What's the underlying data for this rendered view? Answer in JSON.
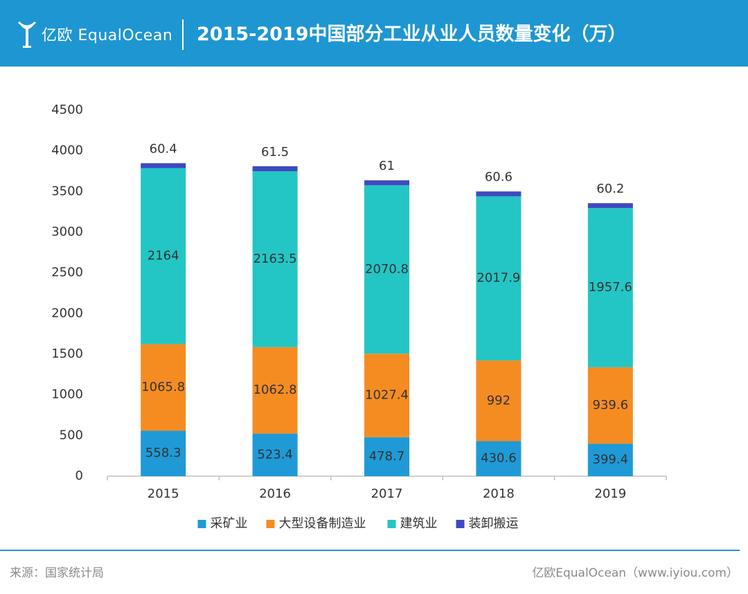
{
  "header": {
    "logo_text": "亿欧 EqualOcean",
    "title": "2015-2019中国部分工业从业人员数量变化（万）"
  },
  "colors": {
    "header_bg": "#1e96d2",
    "series": [
      "#1f9ad6",
      "#f58c22",
      "#23c6c4",
      "#3e4ac0"
    ]
  },
  "chart_data": {
    "type": "bar",
    "stacked": true,
    "categories": [
      "2015",
      "2016",
      "2017",
      "2018",
      "2019"
    ],
    "series": [
      {
        "name": "采矿业",
        "values": [
          558.3,
          523.4,
          478.7,
          430.6,
          399.4
        ]
      },
      {
        "name": "大型设备制造业",
        "values": [
          1065.8,
          1062.8,
          1027.4,
          992,
          939.6
        ]
      },
      {
        "name": "建筑业",
        "values": [
          2164,
          2163.5,
          2070.8,
          2017.9,
          1957.6
        ]
      },
      {
        "name": "装卸搬运",
        "values": [
          60.4,
          61.5,
          61,
          60.6,
          60.2
        ]
      }
    ],
    "ylim": [
      0,
      4500
    ],
    "yticks": [
      0,
      500,
      1000,
      1500,
      2000,
      2500,
      3000,
      3500,
      4000,
      4500
    ],
    "grid": false,
    "legend": "bottom"
  },
  "footer": {
    "source": "来源：国家统计局",
    "credit": "亿欧EqualOcean（www.iyiou.com）"
  }
}
